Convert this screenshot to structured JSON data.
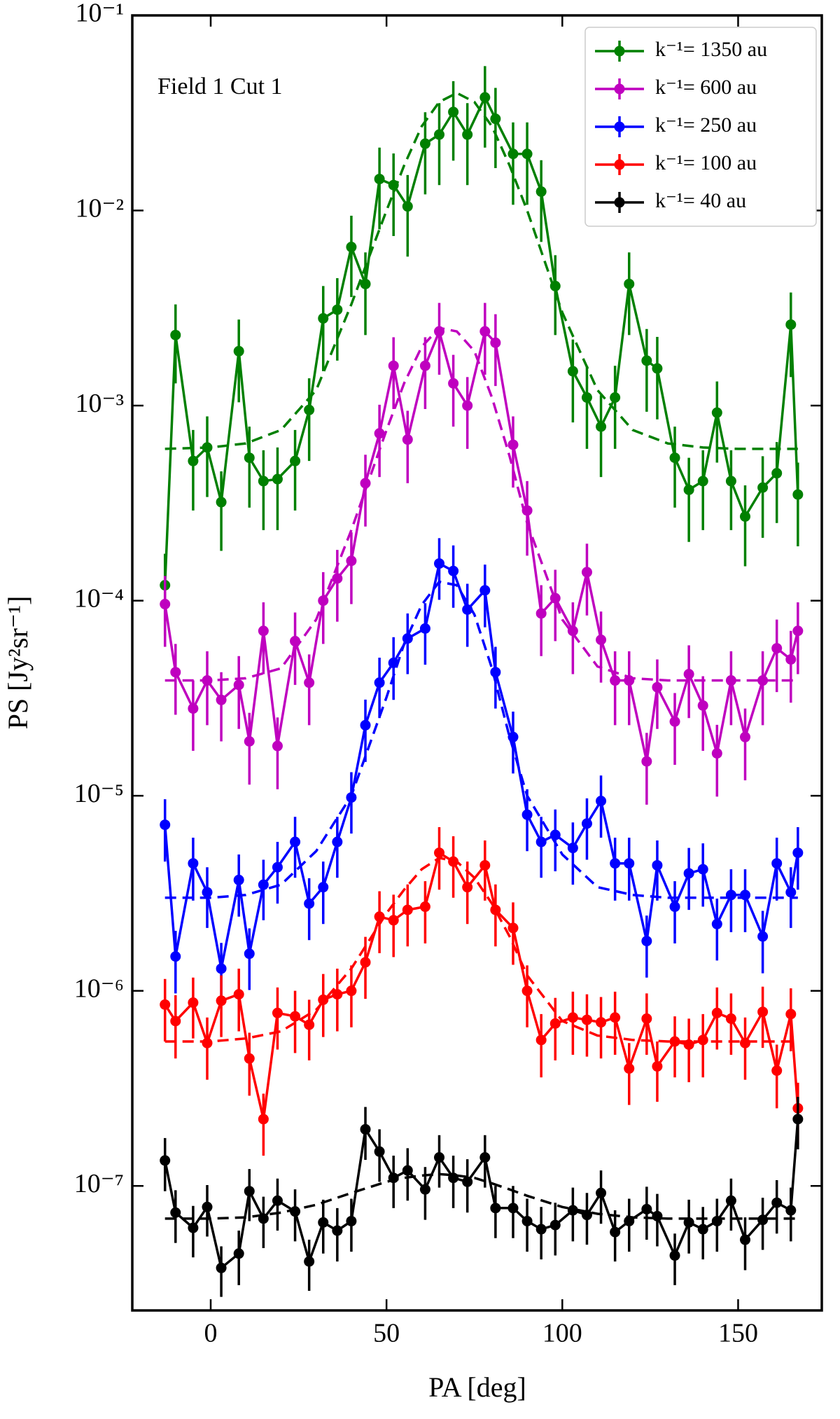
{
  "chart_data": {
    "type": "line",
    "xlabel": "PA [deg]",
    "ylabel": "PS [Jy²sr⁻¹]",
    "annotation": "Field 1 Cut 1",
    "ylog": true,
    "legend": "upper right",
    "xlim": [
      -22.3,
      173.8
    ],
    "ylim": [
      2.3e-08,
      0.1
    ],
    "xticks": [
      0,
      50,
      100,
      150
    ],
    "yticks": [
      {
        "value": 1e-07,
        "label": "10⁻⁷"
      },
      {
        "value": 1e-06,
        "label": "10⁻⁶"
      },
      {
        "value": 1e-05,
        "label": "10⁻⁵"
      },
      {
        "value": 0.0001,
        "label": "10⁻⁴"
      },
      {
        "value": 0.001,
        "label": "10⁻³"
      },
      {
        "value": 0.01,
        "label": "10⁻²"
      },
      {
        "value": 0.1,
        "label": "10⁻¹"
      }
    ],
    "x": [
      -13,
      -10,
      -5,
      -1,
      3,
      8,
      11,
      15,
      19,
      24,
      28,
      32,
      36,
      40,
      44,
      48,
      52,
      56,
      61,
      65,
      69,
      73,
      78,
      81,
      86,
      90,
      94,
      98,
      103,
      107,
      111,
      115,
      119,
      124,
      127,
      132,
      136,
      140,
      144,
      148,
      152,
      157,
      161,
      165,
      167
    ],
    "fit_x": [
      -13,
      0,
      10,
      20,
      30,
      40,
      50,
      55,
      60,
      65,
      70,
      75,
      80,
      85,
      90,
      100,
      110,
      120,
      130,
      140,
      150,
      167
    ],
    "series": [
      {
        "name": "k⁻¹= 1350 au",
        "color": "#008000",
        "values": [
          0.00012,
          0.0023,
          0.00052,
          0.00061,
          0.00032,
          0.0019,
          0.00054,
          0.00041,
          0.00042,
          0.00052,
          0.00095,
          0.0028,
          0.0031,
          0.0065,
          0.0042,
          0.0145,
          0.0135,
          0.0105,
          0.022,
          0.0245,
          0.032,
          0.0245,
          0.038,
          0.0295,
          0.0195,
          0.0195,
          0.0125,
          0.0041,
          0.0015,
          0.0011,
          0.00078,
          0.0011,
          0.0042,
          0.0017,
          0.00155,
          0.00054,
          0.00037,
          0.00041,
          0.00092,
          0.00041,
          0.00027,
          0.00038,
          0.00045,
          0.0026,
          0.00035
        ],
        "errors": [
          5.4e-05,
          0.001,
          0.00023,
          0.00027,
          0.00014,
          0.00086,
          0.00024,
          0.00018,
          0.00019,
          0.00023,
          0.00043,
          0.0013,
          0.0014,
          0.0029,
          0.0019,
          0.0065,
          0.0061,
          0.0047,
          0.0099,
          0.011,
          0.014,
          0.011,
          0.017,
          0.013,
          0.0088,
          0.0088,
          0.0056,
          0.0018,
          0.00068,
          0.0005,
          0.00035,
          0.0005,
          0.0019,
          0.00077,
          0.0007,
          0.00024,
          0.00017,
          0.00018,
          0.00041,
          0.00018,
          0.00012,
          0.00017,
          0.0002,
          0.0012,
          0.00016
        ],
        "fit": [
          0.0006,
          0.00061,
          0.00064,
          0.00075,
          0.0012,
          0.0033,
          0.01,
          0.017,
          0.027,
          0.036,
          0.04,
          0.036,
          0.027,
          0.017,
          0.01,
          0.003,
          0.0012,
          0.00075,
          0.00064,
          0.00061,
          0.0006,
          0.0006
        ]
      },
      {
        "name": "k⁻¹= 600 au",
        "color": "#bf00bf",
        "values": [
          9.6e-05,
          4.3e-05,
          2.8e-05,
          3.9e-05,
          3.1e-05,
          3.7e-05,
          1.9e-05,
          7e-05,
          1.8e-05,
          6.2e-05,
          3.8e-05,
          0.0001,
          0.00013,
          0.00016,
          0.0004,
          0.00072,
          0.0016,
          0.00067,
          0.0016,
          0.0024,
          0.0013,
          0.001,
          0.0024,
          0.0021,
          0.00063,
          0.00029,
          8.6e-05,
          0.000103,
          7e-05,
          0.00014,
          6.3e-05,
          3.9e-05,
          3.9e-05,
          1.5e-05,
          3.6e-05,
          2.4e-05,
          4.2e-05,
          2.9e-05,
          1.65e-05,
          3.9e-05,
          2e-05,
          3.9e-05,
          5.7e-05,
          5e-05,
          7e-05
        ],
        "errors": [
          3.8e-05,
          1.7e-05,
          1.1e-05,
          1.6e-05,
          1.2e-05,
          1.5e-05,
          7.6e-06,
          2.8e-05,
          7.2e-06,
          2.5e-05,
          1.5e-05,
          4e-05,
          5.2e-05,
          6.4e-05,
          0.00016,
          0.00029,
          0.00064,
          0.00027,
          0.00064,
          0.00096,
          0.00052,
          0.0004,
          0.00096,
          0.00084,
          0.00025,
          0.00012,
          3.4e-05,
          4.1e-05,
          2.8e-05,
          5.6e-05,
          2.5e-05,
          1.6e-05,
          1.6e-05,
          6e-06,
          1.4e-05,
          9.6e-06,
          1.7e-05,
          1.2e-05,
          6.6e-06,
          1.6e-05,
          8e-06,
          1.6e-05,
          2.3e-05,
          2e-05,
          2.8e-05
        ],
        "fit": [
          3.9e-05,
          3.9e-05,
          4e-05,
          4.5e-05,
          8e-05,
          0.00023,
          0.00075,
          0.0013,
          0.002,
          0.0025,
          0.0024,
          0.0019,
          0.0011,
          0.00055,
          0.00025,
          8e-05,
          4.6e-05,
          4e-05,
          3.9e-05,
          3.9e-05,
          3.9e-05,
          3.9e-05
        ]
      },
      {
        "name": "k⁻¹= 250 au",
        "color": "#0000ff",
        "values": [
          7.1e-06,
          1.5e-06,
          4.5e-06,
          3.2e-06,
          1.3e-06,
          3.7e-06,
          1.55e-06,
          3.5e-06,
          4.3e-06,
          5.8e-06,
          2.8e-06,
          3.4e-06,
          5.8e-06,
          9.8e-06,
          2.3e-05,
          3.8e-05,
          4.8e-05,
          6.4e-05,
          7.2e-05,
          0.000155,
          0.000142,
          9e-05,
          0.000113,
          4.3e-05,
          2e-05,
          8e-06,
          5.8e-06,
          6.3e-06,
          5.4e-06,
          7.2e-06,
          9.4e-06,
          4.5e-06,
          4.5e-06,
          1.8e-06,
          4.4e-06,
          2.7e-06,
          4e-06,
          4.2e-06,
          2.2e-06,
          3.1e-06,
          3.1e-06,
          1.9e-06,
          4.5e-06,
          3.2e-06,
          5.1e-06
        ],
        "errors": [
          2.5e-06,
          5.3e-07,
          1.6e-06,
          1.1e-06,
          4.6e-07,
          1.3e-06,
          5.4e-07,
          1.2e-06,
          1.5e-06,
          2e-06,
          9.8e-07,
          1.2e-06,
          2e-06,
          3.4e-06,
          8.1e-06,
          1.3e-05,
          1.7e-05,
          2.2e-05,
          2.5e-05,
          5.4e-05,
          5e-05,
          3.2e-05,
          4e-05,
          1.5e-05,
          7e-06,
          2.8e-06,
          2e-06,
          2.2e-06,
          1.9e-06,
          2.5e-06,
          3.3e-06,
          1.6e-06,
          1.6e-06,
          6.3e-07,
          1.5e-06,
          9.5e-07,
          1.4e-06,
          1.5e-06,
          7.7e-07,
          1.1e-06,
          1.1e-06,
          6.7e-07,
          1.6e-06,
          1.1e-06,
          1.8e-06
        ],
        "fit": [
          3e-06,
          3e-06,
          3.1e-06,
          3.5e-06,
          5.2e-06,
          1e-05,
          3.2e-05,
          6e-05,
          9.5e-05,
          0.000125,
          0.00012,
          8.5e-05,
          4.5e-05,
          2e-05,
          1e-05,
          5e-06,
          3.4e-06,
          3.1e-06,
          3e-06,
          3e-06,
          3e-06,
          3e-06
        ]
      },
      {
        "name": "k⁻¹= 100 au",
        "color": "#ff0000",
        "values": [
          8.5e-07,
          7e-07,
          8.7e-07,
          5.4e-07,
          8.9e-07,
          9.6e-07,
          4.5e-07,
          2.2e-07,
          7.7e-07,
          7.4e-07,
          6.7e-07,
          9e-07,
          9.6e-07,
          1e-06,
          1.4e-06,
          2.4e-06,
          2.3e-06,
          2.6e-06,
          2.7e-06,
          5.1e-06,
          4.6e-06,
          3.4e-06,
          4.4e-06,
          2.6e-06,
          2.1e-06,
          1e-06,
          5.6e-07,
          6.8e-07,
          7.3e-07,
          7.1e-07,
          6.9e-07,
          7.3e-07,
          4e-07,
          7.2e-07,
          4.1e-07,
          5.5e-07,
          5.3e-07,
          5.6e-07,
          7.7e-07,
          7.2e-07,
          5.4e-07,
          7.8e-07,
          3.9e-07,
          7.6e-07,
          2.5e-07
        ],
        "errors": [
          3e-07,
          2.5e-07,
          3e-07,
          1.9e-07,
          3.1e-07,
          3.4e-07,
          1.6e-07,
          7.7e-08,
          2.7e-07,
          2.6e-07,
          2.3e-07,
          3.2e-07,
          3.4e-07,
          3.5e-07,
          4.9e-07,
          8.4e-07,
          8.1e-07,
          9.1e-07,
          9.5e-07,
          1.8e-06,
          1.6e-06,
          1.2e-06,
          1.5e-06,
          9.1e-07,
          7.4e-07,
          3.5e-07,
          2e-07,
          2.4e-07,
          2.6e-07,
          2.5e-07,
          2.4e-07,
          2.6e-07,
          1.4e-07,
          2.5e-07,
          1.4e-07,
          1.9e-07,
          1.9e-07,
          2e-07,
          2.7e-07,
          2.5e-07,
          1.9e-07,
          2.7e-07,
          1.4e-07,
          2.7e-07,
          8.8e-08
        ],
        "fit": [
          5.5e-07,
          5.5e-07,
          5.7e-07,
          6.2e-07,
          8e-07,
          1.3e-06,
          2.5e-06,
          3.3e-06,
          4.2e-06,
          4.8e-06,
          4.6e-06,
          3.8e-06,
          2.8e-06,
          1.9e-06,
          1.2e-06,
          7e-07,
          5.9e-07,
          5.6e-07,
          5.5e-07,
          5.5e-07,
          5.5e-07,
          5.5e-07
        ]
      },
      {
        "name": "k⁻¹= 40 au",
        "color": "#000000",
        "values": [
          1.35e-07,
          7.3e-08,
          6.1e-08,
          7.8e-08,
          3.8e-08,
          4.5e-08,
          9.4e-08,
          6.8e-08,
          8.4e-08,
          7.4e-08,
          4.1e-08,
          6.5e-08,
          5.9e-08,
          6.6e-08,
          1.95e-07,
          1.5e-07,
          1.1e-07,
          1.2e-07,
          9.6e-08,
          1.4e-07,
          1.1e-07,
          1.05e-07,
          1.4e-07,
          7.7e-08,
          7.7e-08,
          6.6e-08,
          6e-08,
          6.3e-08,
          7.5e-08,
          7.1e-08,
          9.2e-08,
          5.8e-08,
          6.6e-08,
          7.6e-08,
          7e-08,
          4.4e-08,
          6.5e-08,
          6e-08,
          6.6e-08,
          8.4e-08,
          5.3e-08,
          6.7e-08,
          8.2e-08,
          7.5e-08,
          2.2e-07
        ],
        "errors": [
          4.1e-08,
          2.2e-08,
          1.8e-08,
          2.3e-08,
          1.1e-08,
          1.4e-08,
          2.8e-08,
          2e-08,
          2.5e-08,
          2.2e-08,
          1.2e-08,
          2e-08,
          1.8e-08,
          2e-08,
          5.9e-08,
          4.5e-08,
          3.3e-08,
          3.6e-08,
          2.9e-08,
          4.2e-08,
          3.3e-08,
          3.2e-08,
          4.2e-08,
          2.3e-08,
          2.3e-08,
          2e-08,
          1.8e-08,
          1.9e-08,
          2.3e-08,
          2.1e-08,
          2.8e-08,
          1.7e-08,
          2e-08,
          2.3e-08,
          2.1e-08,
          1.3e-08,
          2e-08,
          1.8e-08,
          2e-08,
          2.5e-08,
          1.6e-08,
          2e-08,
          2.5e-08,
          2.3e-08,
          6.6e-08
        ],
        "fit": [
          6.8e-08,
          6.8e-08,
          6.9e-08,
          7.3e-08,
          8e-08,
          9.2e-08,
          1.05e-07,
          1.1e-07,
          1.13e-07,
          1.15e-07,
          1.13e-07,
          1.1e-07,
          1.03e-07,
          9.6e-08,
          8.9e-08,
          7.8e-08,
          7.2e-08,
          6.9e-08,
          6.8e-08,
          6.8e-08,
          6.8e-08,
          6.8e-08
        ]
      }
    ]
  }
}
